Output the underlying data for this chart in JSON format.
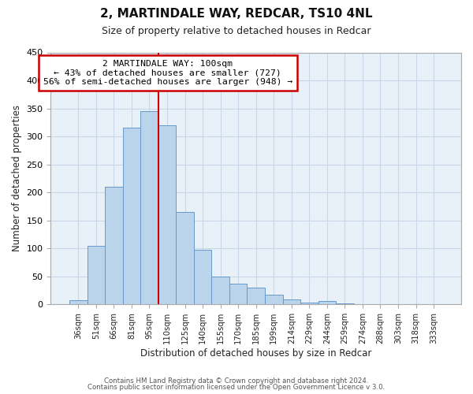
{
  "title": "2, MARTINDALE WAY, REDCAR, TS10 4NL",
  "subtitle": "Size of property relative to detached houses in Redcar",
  "xlabel": "Distribution of detached houses by size in Redcar",
  "ylabel": "Number of detached properties",
  "bar_labels": [
    "36sqm",
    "51sqm",
    "66sqm",
    "81sqm",
    "95sqm",
    "110sqm",
    "125sqm",
    "140sqm",
    "155sqm",
    "170sqm",
    "185sqm",
    "199sqm",
    "214sqm",
    "229sqm",
    "244sqm",
    "259sqm",
    "274sqm",
    "288sqm",
    "303sqm",
    "318sqm",
    "333sqm"
  ],
  "bar_values": [
    7,
    105,
    210,
    315,
    345,
    320,
    165,
    97,
    50,
    37,
    30,
    18,
    9,
    4,
    6,
    2,
    1,
    1,
    0,
    0,
    1
  ],
  "bar_color": "#bad4ec",
  "bar_edge_color": "#6699cc",
  "property_line_x": 4.5,
  "property_line_color": "#cc0000",
  "annotation_title": "2 MARTINDALE WAY: 100sqm",
  "annotation_line1": "← 43% of detached houses are smaller (727)",
  "annotation_line2": "56% of semi-detached houses are larger (948) →",
  "annotation_box_color": "#cc0000",
  "ylim": [
    0,
    450
  ],
  "yticks": [
    0,
    50,
    100,
    150,
    200,
    250,
    300,
    350,
    400,
    450
  ],
  "footer1": "Contains HM Land Registry data © Crown copyright and database right 2024.",
  "footer2": "Contains public sector information licensed under the Open Government Licence v 3.0.",
  "background_color": "#ffffff",
  "grid_color": "#c8d8e8"
}
